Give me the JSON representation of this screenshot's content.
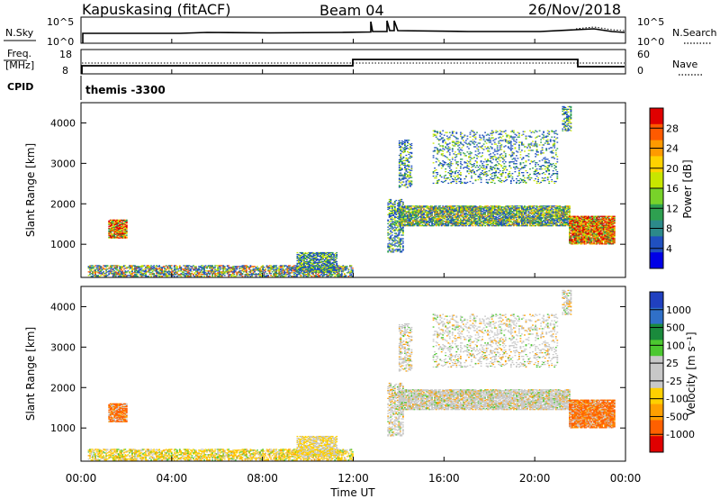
{
  "header": {
    "station": "Kapuskasing (fitACF)",
    "beam": "Beam 04",
    "date": "26/Nov/2018"
  },
  "noise_panel": {
    "left_label": "N.Sky",
    "right_label": "N.Search",
    "left_ticks": [
      "10^5",
      "10^0"
    ],
    "right_ticks": [
      "10^5",
      "10^0"
    ]
  },
  "freq_panel": {
    "left_label_line1": "Freq.",
    "left_label_line2": "[MHz]",
    "right_label": "Nave",
    "left_ticks": [
      "18",
      "8"
    ],
    "right_ticks": [
      "60",
      "0"
    ]
  },
  "cpid": {
    "label": "CPID",
    "value": "themis -3300"
  },
  "power_panel": {
    "ylabel": "Slant Range [km]",
    "colorbar_label": "Power [dB]",
    "colorbar_ticks": [
      "28",
      "24",
      "20",
      "16",
      "12",
      "8",
      "4"
    ],
    "colorbar_colors": [
      "#e00000",
      "#ff5a00",
      "#ff9a00",
      "#ffd200",
      "#c8e600",
      "#78d22a",
      "#2ea050",
      "#2c8a8a",
      "#2050c0",
      "#0000e6"
    ]
  },
  "velocity_panel": {
    "ylabel": "Slant Range [km]",
    "colorbar_label": "Velocity [m s⁻¹]",
    "colorbar_ticks": [
      "1000",
      "500",
      "100",
      "25",
      "-25",
      "-100",
      "-500",
      "-1000"
    ],
    "colorbar_colors": [
      "#2040c0",
      "#3070c8",
      "#1a8a3c",
      "#4cc830",
      "#c8c8c8",
      "#c8c8c8",
      "#ffd000",
      "#ffa000",
      "#ff6000",
      "#e00000"
    ]
  },
  "x_axis": {
    "ticks": [
      "00:00",
      "04:00",
      "08:00",
      "12:00",
      "16:00",
      "20:00",
      "00:00"
    ],
    "xlabel": "Time UT"
  },
  "chart_data": {
    "type": "heatmap",
    "x_range_hours": [
      0,
      24
    ],
    "y_range_km": [
      180,
      4500
    ],
    "y_ticks_km": [
      1000,
      2000,
      3000,
      4000
    ],
    "regions": [
      {
        "t0": 0.3,
        "t1": 12.0,
        "r0": 200,
        "r1": 480,
        "density": 0.6
      },
      {
        "t0": 1.2,
        "t1": 2.0,
        "r0": 1150,
        "r1": 1600,
        "density": 0.85
      },
      {
        "t0": 9.5,
        "t1": 11.3,
        "r0": 300,
        "r1": 800,
        "density": 0.7
      },
      {
        "t0": 13.5,
        "t1": 14.2,
        "r0": 800,
        "r1": 2100,
        "density": 0.45
      },
      {
        "t0": 14.0,
        "t1": 21.5,
        "r0": 1450,
        "r1": 1950,
        "density": 0.8
      },
      {
        "t0": 14.0,
        "t1": 14.6,
        "r0": 2400,
        "r1": 3600,
        "density": 0.4
      },
      {
        "t0": 15.5,
        "t1": 21.0,
        "r0": 2500,
        "r1": 3800,
        "density": 0.2
      },
      {
        "t0": 21.2,
        "t1": 21.6,
        "r0": 3800,
        "r1": 4400,
        "density": 0.5
      },
      {
        "t0": 21.5,
        "t1": 23.5,
        "r0": 1000,
        "r1": 1700,
        "density": 0.9
      }
    ]
  }
}
